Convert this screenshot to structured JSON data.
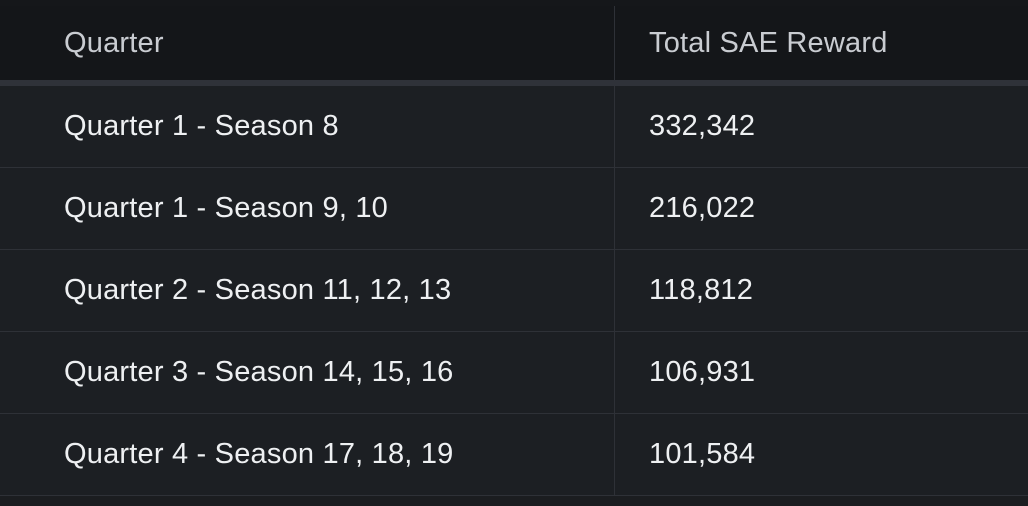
{
  "table": {
    "headers": {
      "quarter": "Quarter",
      "reward": "Total SAE Reward"
    },
    "rows": [
      {
        "quarter": "Quarter 1 - Season 8",
        "reward": "332,342"
      },
      {
        "quarter": "Quarter 1 - Season 9, 10",
        "reward": "216,022"
      },
      {
        "quarter": "Quarter 2 - Season 11, 12, 13",
        "reward": "118,812"
      },
      {
        "quarter": "Quarter 3 - Season 14, 15, 16",
        "reward": "106,931"
      },
      {
        "quarter": "Quarter 4 - Season 17, 18, 19",
        "reward": "101,584"
      }
    ]
  },
  "colors": {
    "background": "#1b1d20",
    "header_background": "#141619",
    "header_divider": "#2f3239",
    "row_divider": "#2e3137",
    "text": "#eef0f2",
    "header_text": "#c9ccd1"
  }
}
